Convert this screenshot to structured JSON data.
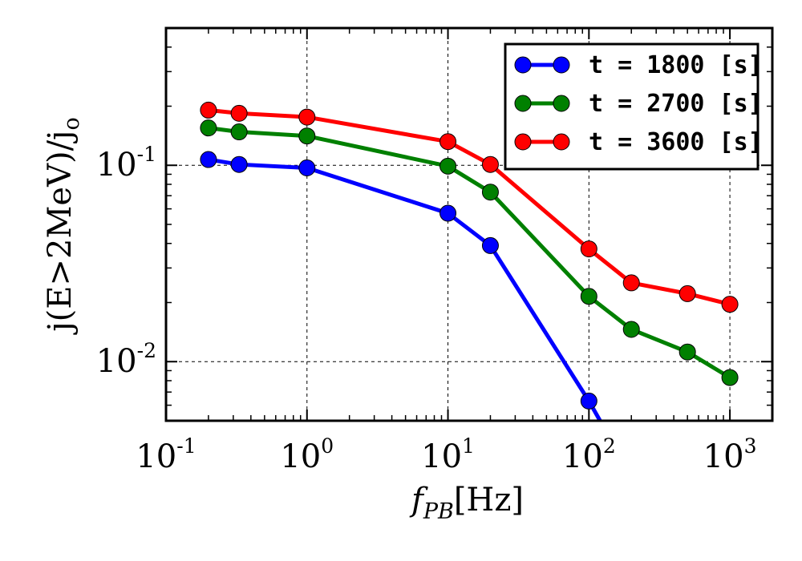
{
  "chart_data": {
    "type": "line",
    "x_scale": "log",
    "y_scale": "log",
    "xlim": [
      0.1,
      2000
    ],
    "ylim": [
      0.005,
      0.5
    ],
    "xlabel": {
      "main": "f",
      "sub": "PB",
      "rest": "[Hz]"
    },
    "ylabel": "j(E>2MeV)/j",
    "ylabel_sub": "o",
    "x_ticks": [
      {
        "value": 0.1,
        "base": "10",
        "exp": "-1"
      },
      {
        "value": 1,
        "base": "10",
        "exp": "0"
      },
      {
        "value": 10,
        "base": "10",
        "exp": "1"
      },
      {
        "value": 100,
        "base": "10",
        "exp": "2"
      },
      {
        "value": 1000,
        "base": "10",
        "exp": "3"
      }
    ],
    "y_ticks": [
      {
        "value": 0.01,
        "base": "10",
        "exp": "-2"
      },
      {
        "value": 0.1,
        "base": "10",
        "exp": "-1"
      }
    ],
    "grid": true,
    "legend_position": "top-right",
    "series": [
      {
        "name": "t = 1800 [s]",
        "color": "#0000ff",
        "x": [
          0.2,
          0.33,
          1,
          10,
          20,
          100,
          120
        ],
        "y": [
          0.107,
          0.101,
          0.097,
          0.057,
          0.039,
          0.0063,
          0.005
        ]
      },
      {
        "name": "t = 2700 [s]",
        "color": "#008000",
        "x": [
          0.2,
          0.33,
          1,
          10,
          20,
          100,
          200,
          500,
          1000
        ],
        "y": [
          0.155,
          0.148,
          0.141,
          0.099,
          0.073,
          0.0215,
          0.0146,
          0.0112,
          0.0083
        ]
      },
      {
        "name": "t = 3600 [s]",
        "color": "#ff0000",
        "x": [
          0.2,
          0.33,
          1,
          10,
          20,
          100,
          200,
          500,
          1000
        ],
        "y": [
          0.191,
          0.184,
          0.176,
          0.132,
          0.101,
          0.0375,
          0.0252,
          0.0222,
          0.0196
        ]
      }
    ]
  }
}
